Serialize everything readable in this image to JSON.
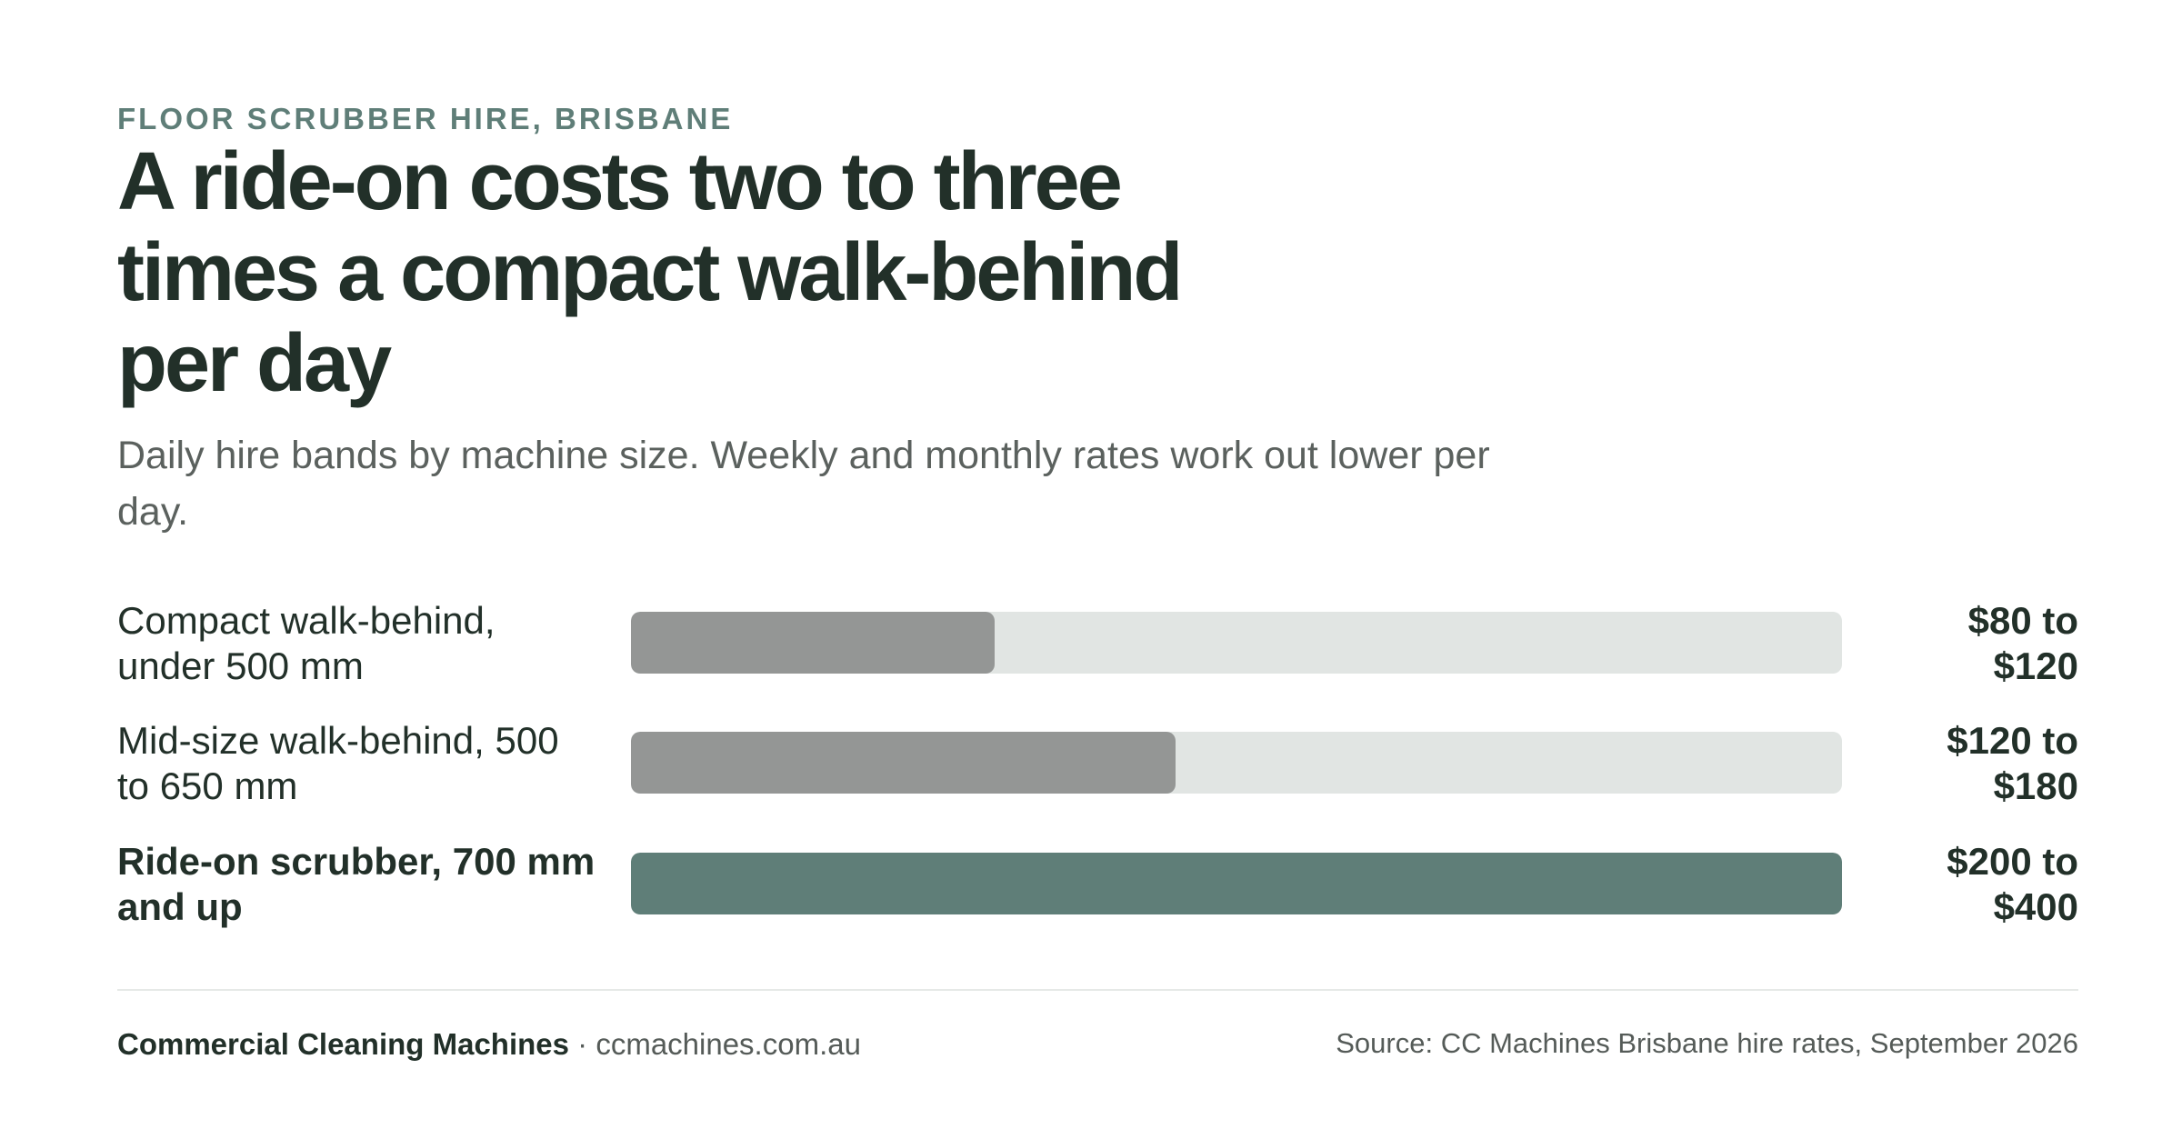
{
  "header": {
    "eyebrow": "FLOOR SCRUBBER HIRE, BRISBANE",
    "title": "A ride-on costs two to three times a compact walk-behind per day",
    "subtitle": "Daily hire bands by machine size. Weekly and monthly rates work out lower per day."
  },
  "chart_data": {
    "type": "bar",
    "orientation": "horizontal",
    "unit": "AUD per day",
    "xlim": [
      0,
      400
    ],
    "grid": false,
    "categories": [
      "Compact walk-behind, under 500 mm",
      "Mid-size walk-behind, 500 to 650 mm",
      "Ride-on scrubber, 700 mm and up"
    ],
    "values": [
      120,
      180,
      400
    ],
    "value_labels": [
      "$80 to $120",
      "$120 to $180",
      "$200 to $400"
    ],
    "highlight_index": 2,
    "colors": {
      "bar": "#949695",
      "highlight": "#5f7e78",
      "track": "#e1e5e3"
    }
  },
  "footer": {
    "brand": "Commercial Cleaning Machines",
    "separator": "·",
    "site": "ccmachines.com.au",
    "source": "Source: CC Machines Brisbane hire rates, September 2026"
  }
}
